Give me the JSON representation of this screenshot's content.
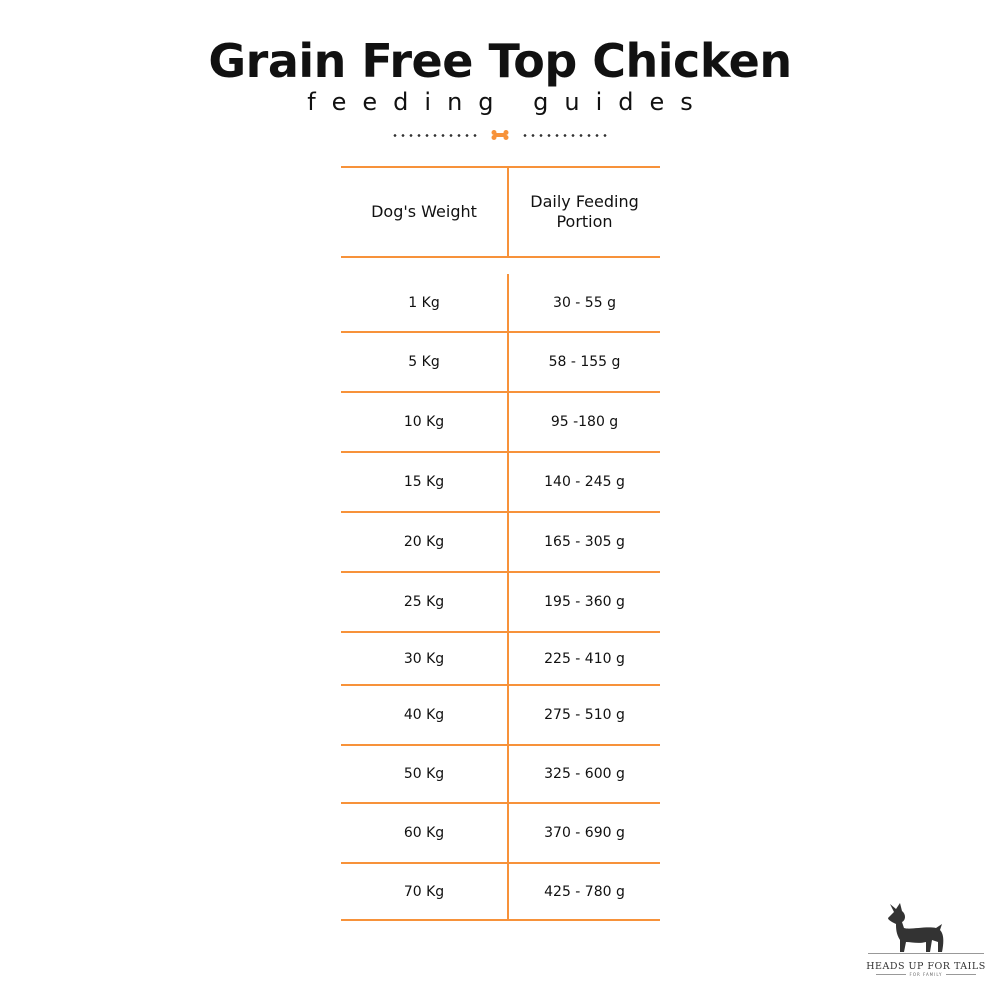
{
  "header": {
    "title": "Grain Free Top Chicken",
    "subtitle": "feeding guides",
    "divider_icon": "bone-icon"
  },
  "colors": {
    "accent": "#f7923a",
    "text": "#111111"
  },
  "table": {
    "headers": [
      "Dog's Weight",
      "Daily Feeding Portion"
    ],
    "rows": [
      [
        "1 Kg",
        "30 - 55 g"
      ],
      [
        "5 Kg",
        "58 - 155 g"
      ],
      [
        "10 Kg",
        "95 -180 g"
      ],
      [
        "15 Kg",
        "140 - 245 g"
      ],
      [
        "20 Kg",
        "165 - 305 g"
      ],
      [
        "25 Kg",
        "195 - 360 g"
      ],
      [
        "30 Kg",
        "225 - 410 g"
      ],
      [
        "40 Kg",
        "275 - 510 g"
      ],
      [
        "50 Kg",
        "325 - 600 g"
      ],
      [
        "60 Kg",
        "370 - 690 g"
      ],
      [
        "70 Kg",
        "425 - 780 g"
      ]
    ]
  },
  "logo": {
    "name": "HEADS UP FOR TAILS",
    "tagline": "FOR FAMILY"
  }
}
